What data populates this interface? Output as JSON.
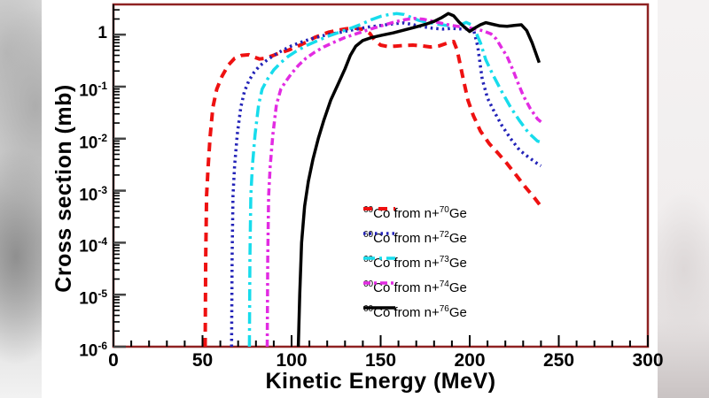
{
  "colors": {
    "frame": "#8f2222",
    "axis": "#000000",
    "background": "#ffffff",
    "side_blur_left": "#c6c6c6",
    "side_blur_right": "#e9e5e5"
  },
  "chart_data": {
    "type": "line",
    "title": "",
    "xlabel": "Kinetic Energy (MeV)",
    "ylabel": "Cross section (mb)",
    "xlim": [
      0,
      300
    ],
    "ylim": [
      1e-06,
      3.8
    ],
    "yscale": "log",
    "ylim_log10": [
      -6,
      0.581
    ],
    "grid": false,
    "legend_position": "lower-center-right",
    "x_major_ticks": [
      0,
      50,
      100,
      150,
      200,
      250,
      300
    ],
    "x_minor_step": 10,
    "y_ticks": [
      {
        "exp": 0,
        "base": "1",
        "sup": ""
      },
      {
        "exp": -1,
        "base": "10",
        "sup": "-1"
      },
      {
        "exp": -2,
        "base": "10",
        "sup": "-2"
      },
      {
        "exp": -3,
        "base": "10",
        "sup": "-3"
      },
      {
        "exp": -4,
        "base": "10",
        "sup": "-4"
      },
      {
        "exp": -5,
        "base": "10",
        "sup": "-5"
      },
      {
        "exp": -6,
        "base": "10",
        "sup": "-6"
      }
    ],
    "series": [
      {
        "name": "60Co from n+70Ge",
        "legend": {
          "sup1": "60",
          "mid": "Co from n+",
          "sup2": "70",
          "end": "Ge"
        },
        "color": "#ee1111",
        "dash": "10 7",
        "width": 4,
        "points": [
          [
            51.5,
            1e-06
          ],
          [
            51.8,
            5e-05
          ],
          [
            52.3,
            0.0008
          ],
          [
            53.2,
            0.003
          ],
          [
            54.3,
            0.011
          ],
          [
            55.8,
            0.04
          ],
          [
            58,
            0.09
          ],
          [
            61,
            0.16
          ],
          [
            64.5,
            0.26
          ],
          [
            68,
            0.35
          ],
          [
            72,
            0.4
          ],
          [
            76,
            0.41
          ],
          [
            79,
            0.37
          ],
          [
            82,
            0.34
          ],
          [
            85,
            0.35
          ],
          [
            89,
            0.39
          ],
          [
            93,
            0.44
          ],
          [
            98,
            0.5
          ],
          [
            102,
            0.57
          ],
          [
            106,
            0.66
          ],
          [
            109,
            0.74
          ],
          [
            113,
            0.88
          ],
          [
            117,
            1.0
          ],
          [
            121,
            1.12
          ],
          [
            126,
            1.22
          ],
          [
            131,
            1.3
          ],
          [
            136,
            1.33
          ],
          [
            140,
            1.27
          ],
          [
            144,
            1.05
          ],
          [
            147,
            0.75
          ],
          [
            150,
            0.63
          ],
          [
            154,
            0.59
          ],
          [
            158,
            0.6
          ],
          [
            163,
            0.62
          ],
          [
            168,
            0.63
          ],
          [
            173,
            0.61
          ],
          [
            178,
            0.58
          ],
          [
            183,
            0.61
          ],
          [
            187,
            0.68
          ],
          [
            191,
            0.74
          ],
          [
            193,
            0.5
          ],
          [
            196,
            0.16
          ],
          [
            199,
            0.055
          ],
          [
            202,
            0.028
          ],
          [
            206,
            0.014
          ],
          [
            211,
            0.008
          ],
          [
            216,
            0.0052
          ],
          [
            221,
            0.0033
          ],
          [
            226,
            0.002
          ],
          [
            231,
            0.0012
          ],
          [
            236,
            0.00075
          ],
          [
            240,
            0.0005
          ]
        ]
      },
      {
        "name": "60Co from n+72Ge",
        "legend": {
          "sup1": "60",
          "mid": "Co from n+",
          "sup2": "72",
          "end": "Ge"
        },
        "color": "#2323b8",
        "dash": "2.5 4",
        "width": 3.5,
        "points": [
          [
            66.3,
            1e-06
          ],
          [
            66.6,
            5e-05
          ],
          [
            67.1,
            0.0008
          ],
          [
            68,
            0.003
          ],
          [
            69.5,
            0.012
          ],
          [
            71.5,
            0.04
          ],
          [
            73.5,
            0.08
          ],
          [
            76,
            0.13
          ],
          [
            79,
            0.19
          ],
          [
            82,
            0.25
          ],
          [
            86,
            0.32
          ],
          [
            90,
            0.4
          ],
          [
            95,
            0.5
          ],
          [
            100,
            0.61
          ],
          [
            106,
            0.73
          ],
          [
            112,
            0.85
          ],
          [
            119,
            0.98
          ],
          [
            127,
            1.1
          ],
          [
            135,
            1.25
          ],
          [
            143,
            1.4
          ],
          [
            151,
            1.52
          ],
          [
            158,
            1.63
          ],
          [
            163,
            1.68
          ],
          [
            168,
            1.56
          ],
          [
            173,
            1.43
          ],
          [
            179,
            1.33
          ],
          [
            185,
            1.28
          ],
          [
            190,
            1.32
          ],
          [
            196,
            1.28
          ],
          [
            202,
            1.32
          ],
          [
            204.5,
            0.6
          ],
          [
            207,
            0.14
          ],
          [
            210,
            0.06
          ],
          [
            214,
            0.032
          ],
          [
            218,
            0.018
          ],
          [
            223,
            0.01
          ],
          [
            228,
            0.006
          ],
          [
            233,
            0.0044
          ],
          [
            238,
            0.0033
          ],
          [
            240,
            0.003
          ]
        ]
      },
      {
        "name": "60Co from n+73Ge",
        "legend": {
          "sup1": "60",
          "mid": "Co from n+",
          "sup2": "73",
          "end": "Ge"
        },
        "color": "#17dcec",
        "dash": "13 5 3 5",
        "width": 3.5,
        "points": [
          [
            76.3,
            1e-06
          ],
          [
            76.6,
            5e-05
          ],
          [
            77.1,
            0.0008
          ],
          [
            78,
            0.003
          ],
          [
            79.5,
            0.012
          ],
          [
            81.5,
            0.045
          ],
          [
            83.5,
            0.09
          ],
          [
            86.5,
            0.14
          ],
          [
            90,
            0.21
          ],
          [
            94,
            0.29
          ],
          [
            98,
            0.38
          ],
          [
            103,
            0.49
          ],
          [
            108,
            0.61
          ],
          [
            114,
            0.75
          ],
          [
            120,
            0.92
          ],
          [
            127,
            1.12
          ],
          [
            133,
            1.32
          ],
          [
            139,
            1.58
          ],
          [
            145,
            1.95
          ],
          [
            150,
            2.25
          ],
          [
            155,
            2.45
          ],
          [
            159,
            2.55
          ],
          [
            163,
            2.45
          ],
          [
            167,
            2.15
          ],
          [
            171,
            1.9
          ],
          [
            176,
            1.72
          ],
          [
            181,
            1.62
          ],
          [
            186,
            1.52
          ],
          [
            191,
            1.45
          ],
          [
            195,
            1.55
          ],
          [
            198,
            1.72
          ],
          [
            201,
            1.55
          ],
          [
            203.5,
            1.1
          ],
          [
            206,
            0.7
          ],
          [
            209,
            0.33
          ],
          [
            213,
            0.17
          ],
          [
            218,
            0.08
          ],
          [
            223,
            0.04
          ],
          [
            228,
            0.022
          ],
          [
            233,
            0.013
          ],
          [
            238,
            0.009
          ],
          [
            240,
            0.0085
          ]
        ]
      },
      {
        "name": "60Co from n+74Ge",
        "legend": {
          "sup1": "60",
          "mid": "Co from n+",
          "sup2": "74",
          "end": "Ge"
        },
        "color": "#e22be2",
        "dash": "8 4 3 4",
        "width": 3.5,
        "points": [
          [
            86.3,
            1e-06
          ],
          [
            86.6,
            5e-05
          ],
          [
            87.1,
            0.0008
          ],
          [
            88,
            0.003
          ],
          [
            89.5,
            0.012
          ],
          [
            91.5,
            0.045
          ],
          [
            94,
            0.09
          ],
          [
            97,
            0.13
          ],
          [
            100,
            0.18
          ],
          [
            104,
            0.26
          ],
          [
            108,
            0.35
          ],
          [
            113,
            0.46
          ],
          [
            118,
            0.58
          ],
          [
            124,
            0.72
          ],
          [
            130,
            0.88
          ],
          [
            137,
            1.06
          ],
          [
            144,
            1.27
          ],
          [
            151,
            1.5
          ],
          [
            158,
            1.76
          ],
          [
            164,
            1.95
          ],
          [
            169,
            2.05
          ],
          [
            174,
            1.98
          ],
          [
            179,
            1.82
          ],
          [
            184,
            1.66
          ],
          [
            189,
            1.52
          ],
          [
            194,
            1.43
          ],
          [
            199,
            1.36
          ],
          [
            204,
            1.27
          ],
          [
            208,
            1.17
          ],
          [
            212,
            1.03
          ],
          [
            215,
            0.82
          ],
          [
            218,
            0.55
          ],
          [
            221,
            0.38
          ],
          [
            224,
            0.22
          ],
          [
            227,
            0.12
          ],
          [
            230,
            0.068
          ],
          [
            234,
            0.038
          ],
          [
            238,
            0.024
          ],
          [
            240,
            0.021
          ]
        ]
      },
      {
        "name": "60Co from n+76Ge",
        "legend": {
          "sup1": "60",
          "mid": "Co from n+",
          "sup2": "76",
          "end": "Ge"
        },
        "color": "#000000",
        "dash": "",
        "width": 3.5,
        "points": [
          [
            103.8,
            1e-06
          ],
          [
            104.6,
            1e-05
          ],
          [
            105.6,
            0.0001
          ],
          [
            107.3,
            0.0005
          ],
          [
            109.4,
            0.0015
          ],
          [
            112,
            0.004
          ],
          [
            115,
            0.01
          ],
          [
            118,
            0.022
          ],
          [
            122,
            0.055
          ],
          [
            126,
            0.11
          ],
          [
            130,
            0.22
          ],
          [
            133,
            0.4
          ],
          [
            136,
            0.6
          ],
          [
            140,
            0.77
          ],
          [
            145,
            0.88
          ],
          [
            151,
            0.98
          ],
          [
            157,
            1.08
          ],
          [
            163,
            1.22
          ],
          [
            169,
            1.38
          ],
          [
            175,
            1.57
          ],
          [
            180,
            1.8
          ],
          [
            184,
            2.1
          ],
          [
            188,
            2.55
          ],
          [
            191,
            2.3
          ],
          [
            194,
            1.75
          ],
          [
            197,
            1.4
          ],
          [
            200,
            1.15
          ],
          [
            203,
            1.35
          ],
          [
            206,
            1.55
          ],
          [
            209,
            1.7
          ],
          [
            213,
            1.58
          ],
          [
            217,
            1.47
          ],
          [
            221,
            1.45
          ],
          [
            225,
            1.5
          ],
          [
            229,
            1.55
          ],
          [
            232,
            1.2
          ],
          [
            235,
            0.7
          ],
          [
            239,
            0.29
          ]
        ]
      }
    ]
  }
}
